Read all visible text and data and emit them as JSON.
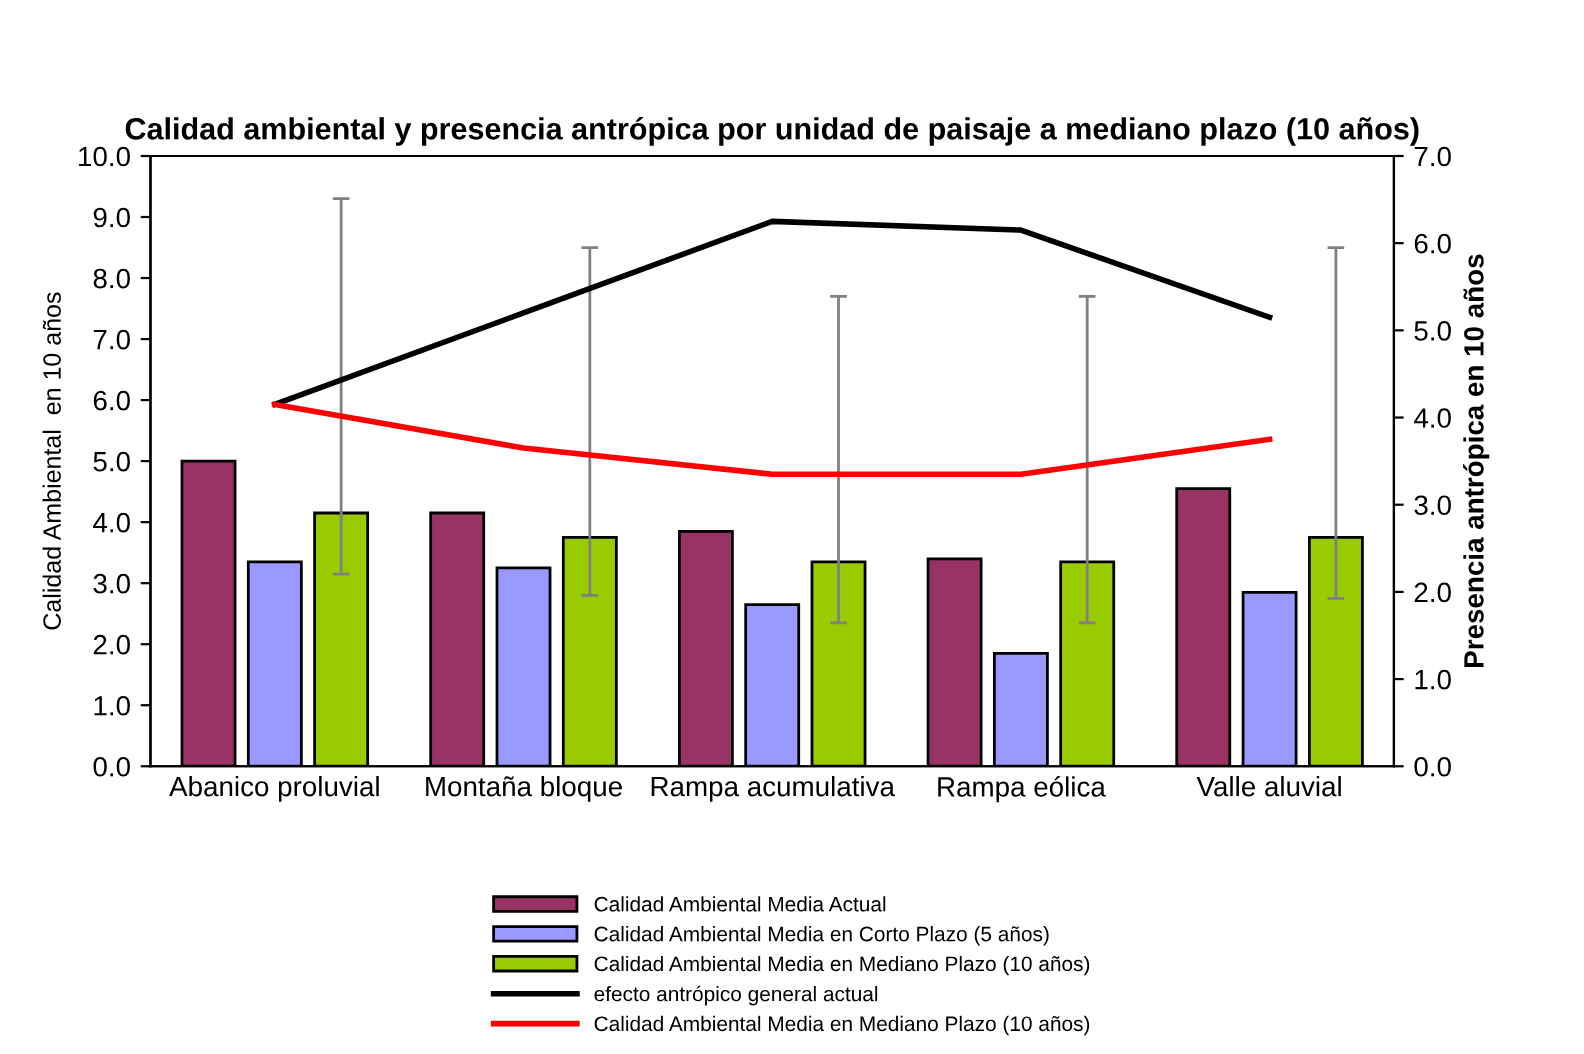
{
  "chart_data": {
    "type": "bar",
    "title": "Calidad ambiental y presencia antrópica por unidad de paisaje a mediano plazo (10 años)",
    "ylabel": "Calidad Ambiental  en 10 años",
    "y2label": "Presencia antrópica en 10 años",
    "categories": [
      "Abanico proluvial",
      "Montaña bloque",
      "Rampa acumulativa",
      "Rampa eólica",
      "Valle aluvial"
    ],
    "series": [
      {
        "name": "Calidad Ambiental Media Actual",
        "color": "#993366",
        "values": [
          5.0,
          4.15,
          3.85,
          3.4,
          4.55
        ]
      },
      {
        "name": "Calidad Ambiental Media en Corto Plazo (5 años)",
        "color": "#9999ff",
        "values": [
          3.35,
          3.25,
          2.65,
          1.85,
          2.85
        ]
      },
      {
        "name": "Calidad Ambiental Media en Mediano Plazo (10 años)",
        "color": "#99cc00",
        "values": [
          4.15,
          3.75,
          3.35,
          3.35,
          3.75
        ],
        "errors": [
          [
            3.15,
            9.3
          ],
          [
            2.8,
            8.5
          ],
          [
            2.35,
            7.7
          ],
          [
            2.35,
            7.7
          ],
          [
            2.75,
            8.5
          ]
        ]
      },
      {
        "name": "efecto antrópico general actual",
        "type": "line",
        "axis": "y2",
        "color": "#000000",
        "values": [
          4.15,
          5.2,
          6.25,
          6.15,
          5.15
        ]
      },
      {
        "name": "Calidad Ambiental Media en Mediano Plazo (10 años)",
        "type": "line",
        "axis": "y2",
        "color": "#ff0000",
        "values": [
          4.15,
          3.65,
          3.35,
          3.35,
          3.75
        ]
      }
    ],
    "ylim": [
      0,
      10
    ],
    "yticks": [
      {
        "value": 0,
        "label": "0.0"
      },
      {
        "value": 1,
        "label": "1.0"
      },
      {
        "value": 2,
        "label": "2.0"
      },
      {
        "value": 3,
        "label": "3.0"
      },
      {
        "value": 4,
        "label": "4.0"
      },
      {
        "value": 5,
        "label": "5.0"
      },
      {
        "value": 6,
        "label": "6.0"
      },
      {
        "value": 7,
        "label": "7.0"
      },
      {
        "value": 8,
        "label": "8.0"
      },
      {
        "value": 9,
        "label": "9.0"
      },
      {
        "value": 10,
        "label": "10.0"
      }
    ],
    "y2lim": [
      0,
      7
    ],
    "y2ticks": [
      {
        "value": 0,
        "label": "0.0"
      },
      {
        "value": 1,
        "label": "1.0"
      },
      {
        "value": 2,
        "label": "2.0"
      },
      {
        "value": 3,
        "label": "3.0"
      },
      {
        "value": 4,
        "label": "4.0"
      },
      {
        "value": 5,
        "label": "5.0"
      },
      {
        "value": 6,
        "label": "6.0"
      },
      {
        "value": 7,
        "label": "7.0"
      }
    ],
    "grid": false,
    "legend": "bottom",
    "marker": "none"
  }
}
